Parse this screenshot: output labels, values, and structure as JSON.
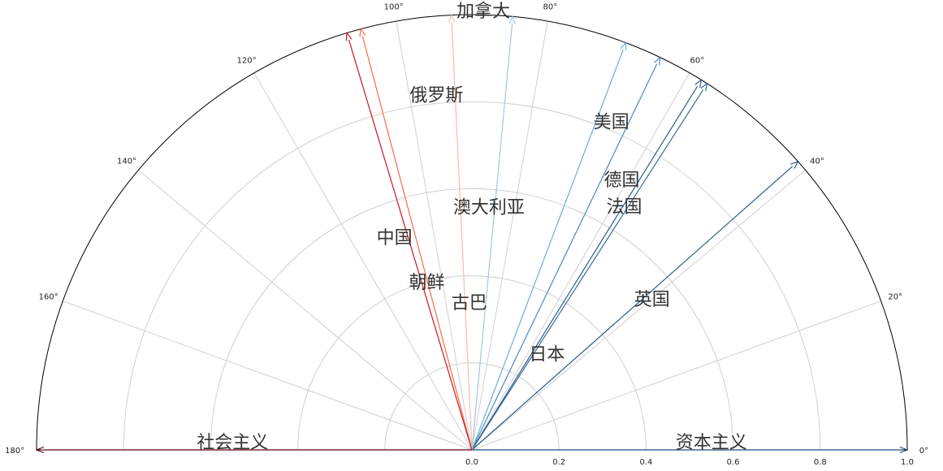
{
  "chart_data": {
    "type": "polar-arrows",
    "theta_range_deg": [
      0,
      180
    ],
    "r_range": [
      0,
      1.0
    ],
    "angle_ticks": [
      {
        "deg": 0,
        "label": "0°"
      },
      {
        "deg": 20,
        "label": "20°"
      },
      {
        "deg": 40,
        "label": "40°"
      },
      {
        "deg": 60,
        "label": "60°"
      },
      {
        "deg": 80,
        "label": "80°"
      },
      {
        "deg": 100,
        "label": "100°"
      },
      {
        "deg": 120,
        "label": "120°"
      },
      {
        "deg": 140,
        "label": "140°"
      },
      {
        "deg": 160,
        "label": "160°"
      },
      {
        "deg": 180,
        "label": "180°"
      }
    ],
    "radial_ticks": [
      {
        "value": 0.0,
        "label": "0.0"
      },
      {
        "value": 0.2,
        "label": "0.2"
      },
      {
        "value": 0.4,
        "label": "0.4"
      },
      {
        "value": 0.6,
        "label": "0.6"
      },
      {
        "value": 0.8,
        "label": "0.8"
      },
      {
        "value": 1.0,
        "label": "1.0"
      }
    ],
    "grid": true,
    "pole_labels": {
      "left": "社会主义",
      "right": "资本主义"
    },
    "arrows": [
      {
        "angle_deg": 0,
        "length": 1.0,
        "color": "#1f4e79"
      },
      {
        "angle_deg": 180,
        "length": 1.0,
        "color": "#67000d"
      },
      {
        "angle_deg": 41.5,
        "length": 1.0,
        "color": "#2c5a88"
      },
      {
        "angle_deg": 57.3,
        "length": 1.0,
        "color": "#3b6b99"
      },
      {
        "angle_deg": 58.2,
        "length": 1.0,
        "color": "#2e5c8a"
      },
      {
        "angle_deg": 64.4,
        "length": 1.0,
        "color": "#4a86c5"
      },
      {
        "angle_deg": 69.3,
        "length": 1.0,
        "color": "#6aaed6"
      },
      {
        "angle_deg": 84.6,
        "length": 1.0,
        "color": "#9ecae1"
      },
      {
        "angle_deg": 92.7,
        "length": 1.0,
        "color": "#fcbba1"
      },
      {
        "angle_deg": 104.8,
        "length": 1.0,
        "color": "#fb6a4a"
      },
      {
        "angle_deg": 106.7,
        "length": 1.0,
        "color": "#cb181d"
      }
    ],
    "labels": [
      {
        "text": "加拿大",
        "angle_deg": 88.5,
        "r": 1.01
      },
      {
        "text": "美国",
        "angle_deg": 67,
        "r": 0.82
      },
      {
        "text": "俄罗斯",
        "angle_deg": 95.7,
        "r": 0.82
      },
      {
        "text": "德国",
        "angle_deg": 61,
        "r": 0.71
      },
      {
        "text": "法国",
        "angle_deg": 58,
        "r": 0.66
      },
      {
        "text": "澳大利亚",
        "angle_deg": 86,
        "r": 0.56
      },
      {
        "text": "中国",
        "angle_deg": 110,
        "r": 0.52
      },
      {
        "text": "英国",
        "angle_deg": 40,
        "r": 0.54
      },
      {
        "text": "朝鲜",
        "angle_deg": 105,
        "r": 0.4
      },
      {
        "text": "古巴",
        "angle_deg": 91,
        "r": 0.34
      },
      {
        "text": "日本",
        "angle_deg": 52,
        "r": 0.28
      }
    ]
  }
}
